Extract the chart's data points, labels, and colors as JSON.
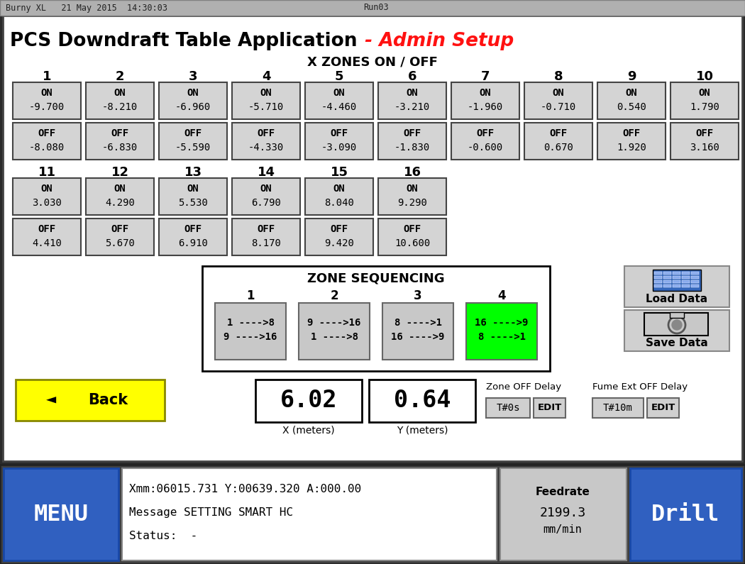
{
  "title_main": "PCS Downdraft Table Application",
  "title_sub": "- Admin Setup",
  "header_bar_text": "Burny XL   21 May 2015  14:30:03",
  "header_bar_right": "Run03",
  "zone_section_title": "X ZONES ON / OFF",
  "zones_row1": [
    1,
    2,
    3,
    4,
    5,
    6,
    7,
    8,
    9,
    10
  ],
  "zones_row2": [
    11,
    12,
    13,
    14,
    15,
    16
  ],
  "on_values_row1": [
    "-9.700",
    "-8.210",
    "-6.960",
    "-5.710",
    "-4.460",
    "-3.210",
    "-1.960",
    "-0.710",
    "0.540",
    "1.790"
  ],
  "off_values_row1": [
    "-8.080",
    "-6.830",
    "-5.590",
    "-4.330",
    "-3.090",
    "-1.830",
    "-0.600",
    "0.670",
    "1.920",
    "3.160"
  ],
  "on_values_row2": [
    "3.030",
    "4.290",
    "5.530",
    "6.790",
    "8.040",
    "9.290"
  ],
  "off_values_row2": [
    "4.410",
    "5.670",
    "6.910",
    "8.170",
    "9.420",
    "10.600"
  ],
  "zone_seq_title": "ZONE SEQUENCING",
  "zone_seq_labels": [
    "1",
    "2",
    "3",
    "4"
  ],
  "zone_seq_line1": [
    "1 ---->8",
    "9 ---->16",
    "8 ---->1",
    "16 ---->9"
  ],
  "zone_seq_line2": [
    "9 ---->16",
    "1 ---->8",
    "16 ---->9",
    "8 ---->1"
  ],
  "zone_seq_highlight": 3,
  "x_display": "6.02",
  "y_display": "0.64",
  "x_label": "X (meters)",
  "y_label": "Y (meters)",
  "zone_off_delay_label": "Zone OFF Delay",
  "zone_off_delay_val": "T#0s",
  "fume_ext_label": "Fume Ext OFF Delay",
  "fume_ext_val": "T#10m",
  "back_btn_color": "#ffff00",
  "menu_btn_color": "#3060c0",
  "drill_btn_color": "#3060c0",
  "status_line1": "Xmm:06015.731 Y:00639.320 A:000.00",
  "status_line2": "Message SETTING SMART HC",
  "status_line3": "Status:  -",
  "feedrate_label": "Feedrate",
  "feedrate_val": "2199.3",
  "feedrate_unit": "mm/min",
  "green_color": "#00ff00"
}
